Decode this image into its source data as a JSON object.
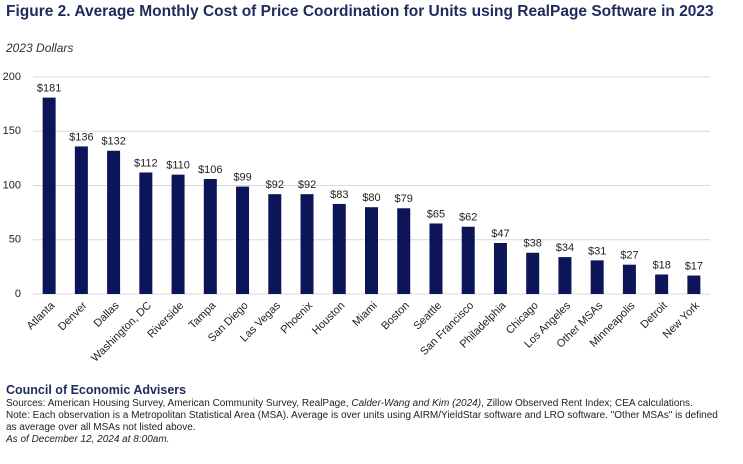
{
  "chart_data": {
    "type": "bar",
    "title": "Figure 2. Average Monthly Cost of Price Coordination for Units using RealPage Software in 2023",
    "subtitle": "2023 Dollars",
    "categories": [
      "Atlanta",
      "Denver",
      "Dallas",
      "Washington, DC",
      "Riverside",
      "Tampa",
      "San Diego",
      "Las Vegas",
      "Phoenix",
      "Houston",
      "Miami",
      "Boston",
      "Seattle",
      "San Francisco",
      "Philadelphia",
      "Chicago",
      "Los Angeles",
      "Other MSAs",
      "Minneapolis",
      "Detroit",
      "New York"
    ],
    "values": [
      181,
      136,
      132,
      112,
      110,
      106,
      99,
      92,
      92,
      83,
      80,
      79,
      65,
      62,
      47,
      38,
      34,
      31,
      27,
      18,
      17
    ],
    "value_labels": [
      "$181",
      "$136",
      "$132",
      "$112",
      "$110",
      "$106",
      "$99",
      "$92",
      "$92",
      "$83",
      "$80",
      "$79",
      "$65",
      "$62",
      "$47",
      "$38",
      "$34",
      "$31",
      "$27",
      "$18",
      "$17"
    ],
    "color": "#0b1557",
    "ylim": [
      0,
      200
    ],
    "yticks": [
      0,
      50,
      100,
      150,
      200
    ],
    "grid": true
  },
  "footer": {
    "organization": "Council of Economic Advisers",
    "sources": [
      "Sources: American Housing Survey, American Community Survey, RealPage, ",
      "Calder-Wang and Kim (2024)",
      ", Zillow Observed Rent Index; CEA calculations."
    ],
    "note": "Note: Each observation is a Metropolitan Statistical Area (MSA). Average is over units using AIRM/YieldStar software and LRO software. \"Other MSAs\" is defined as average over all MSAs not listed above.",
    "timestamp": "As of December 12, 2024 at 8:00am."
  }
}
